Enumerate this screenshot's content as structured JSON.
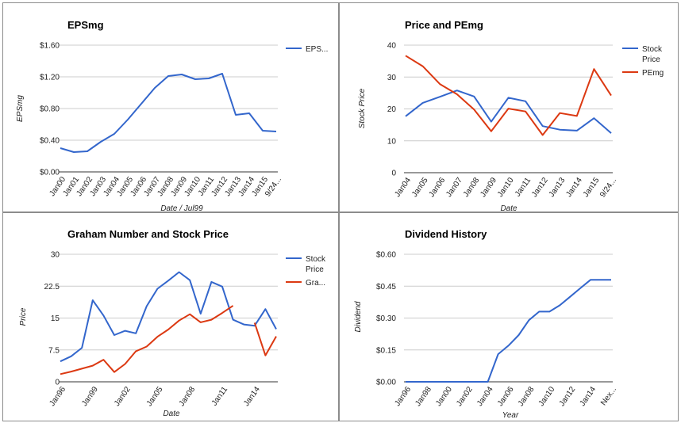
{
  "chart_data": [
    {
      "type": "line",
      "title": "EPSmg",
      "xlabel": "Date / Jul99",
      "ylabel": "EPSmg",
      "categories": [
        "Jan00",
        "Jan01",
        "Jan02",
        "Jan03",
        "Jan04",
        "Jan05",
        "Jan06",
        "Jan07",
        "Jan08",
        "Jan09",
        "Jan10",
        "Jan11",
        "Jan12",
        "Jan13",
        "Jan14",
        "Jan15",
        "9/24..."
      ],
      "ylim": [
        0,
        1.6
      ],
      "yticks": [
        0,
        0.4,
        0.8,
        1.2,
        1.6
      ],
      "ytick_labels": [
        "$0.00",
        "$0.40",
        "$0.80",
        "$1.20",
        "$1.60"
      ],
      "series": [
        {
          "name": "EPS...",
          "color": "#3366cc",
          "values": [
            0.3,
            0.25,
            0.26,
            0.38,
            0.48,
            0.66,
            0.86,
            1.06,
            1.21,
            1.23,
            1.17,
            1.18,
            1.24,
            0.72,
            0.74,
            0.52,
            0.51
          ]
        }
      ],
      "legend": "right"
    },
    {
      "type": "line",
      "title": "Price and PEmg",
      "xlabel": "Date",
      "ylabel": "Stock Price",
      "categories": [
        "Jan04",
        "Jan05",
        "Jan06",
        "Jan07",
        "Jan08",
        "Jan09",
        "Jan10",
        "Jan11",
        "Jan12",
        "Jan13",
        "Jan14",
        "Jan15",
        "9/24..."
      ],
      "ylim": [
        0,
        40
      ],
      "yticks": [
        0,
        10,
        20,
        30,
        40
      ],
      "ytick_labels": [
        "0",
        "10",
        "20",
        "30",
        "40"
      ],
      "series": [
        {
          "name": "Stock Price",
          "color": "#3366cc",
          "values": [
            17.7,
            21.9,
            23.8,
            25.8,
            23.9,
            16.0,
            23.5,
            22.4,
            14.6,
            13.5,
            13.2,
            17.1,
            12.4
          ]
        },
        {
          "name": "PEmg",
          "color": "#dc3912",
          "values": [
            36.7,
            33.4,
            27.8,
            24.6,
            19.8,
            13.0,
            20.1,
            19.2,
            11.8,
            18.7,
            17.8,
            32.5,
            24.2
          ]
        }
      ],
      "legend": "right"
    },
    {
      "type": "line",
      "title": "Graham Number and Stock Price",
      "xlabel": "Date",
      "ylabel": "Price",
      "categories": [
        "Jan96",
        "Jan97",
        "Jan98",
        "Jan99",
        "Jan00",
        "Jan01",
        "Jan02",
        "Jan03",
        "Jan04",
        "Jan05",
        "Jan06",
        "Jan07",
        "Jan08",
        "Jan09",
        "Jan10",
        "Jan11",
        "Jan12",
        "Jan13",
        "Jan14",
        "Jan15",
        "Jan16"
      ],
      "xtick_labels": [
        "Jan96",
        "Jan99",
        "Jan02",
        "Jan05",
        "Jan08",
        "Jan11",
        "Jan14"
      ],
      "ylim": [
        0,
        30
      ],
      "yticks": [
        0,
        7.5,
        15,
        22.5,
        30
      ],
      "ytick_labels": [
        "0",
        "7.5",
        "15",
        "22.5",
        "30"
      ],
      "series": [
        {
          "name": "Stock Price",
          "color": "#3366cc",
          "values": [
            4.8,
            6.0,
            8.0,
            19.2,
            15.6,
            11.0,
            12.0,
            11.4,
            17.8,
            21.9,
            23.8,
            25.8,
            23.9,
            16.0,
            23.5,
            22.4,
            14.6,
            13.5,
            13.2,
            17.1,
            12.4
          ]
        },
        {
          "name": "Gra...",
          "color": "#dc3912",
          "values": [
            1.8,
            2.4,
            3.1,
            3.8,
            5.2,
            2.3,
            4.2,
            7.2,
            8.3,
            10.6,
            12.3,
            14.4,
            15.9,
            14.0,
            14.6,
            16.2,
            17.9,
            null,
            13.9,
            6.2,
            10.7
          ]
        }
      ],
      "legend": "right"
    },
    {
      "type": "line",
      "title": "Dividend History",
      "xlabel": "Year",
      "ylabel": "Dividend",
      "categories": [
        "Jan96",
        "Jan97",
        "Jan98",
        "Jan99",
        "Jan00",
        "Jan01",
        "Jan02",
        "Jan03",
        "Jan04",
        "Jan05",
        "Jan06",
        "Jan07",
        "Jan08",
        "Jan09",
        "Jan10",
        "Jan11",
        "Jan12",
        "Jan13",
        "Jan14",
        "Jan15",
        "Nex..."
      ],
      "xtick_labels": [
        "Jan96",
        "Jan98",
        "Jan00",
        "Jan02",
        "Jan04",
        "Jan06",
        "Jan08",
        "Jan10",
        "Jan12",
        "Jan14",
        "Nex..."
      ],
      "ylim": [
        0,
        0.6
      ],
      "yticks": [
        0,
        0.15,
        0.3,
        0.45,
        0.6
      ],
      "ytick_labels": [
        "$0.00",
        "$0.15",
        "$0.30",
        "$0.45",
        "$0.60"
      ],
      "series": [
        {
          "name": "Dividend",
          "color": "#3366cc",
          "values": [
            0,
            0,
            0,
            0,
            0,
            0,
            0,
            0,
            0,
            0.13,
            0.17,
            0.22,
            0.29,
            0.33,
            0.33,
            0.36,
            0.4,
            0.44,
            0.48,
            0.48,
            0.48
          ]
        }
      ],
      "legend": "none"
    }
  ]
}
